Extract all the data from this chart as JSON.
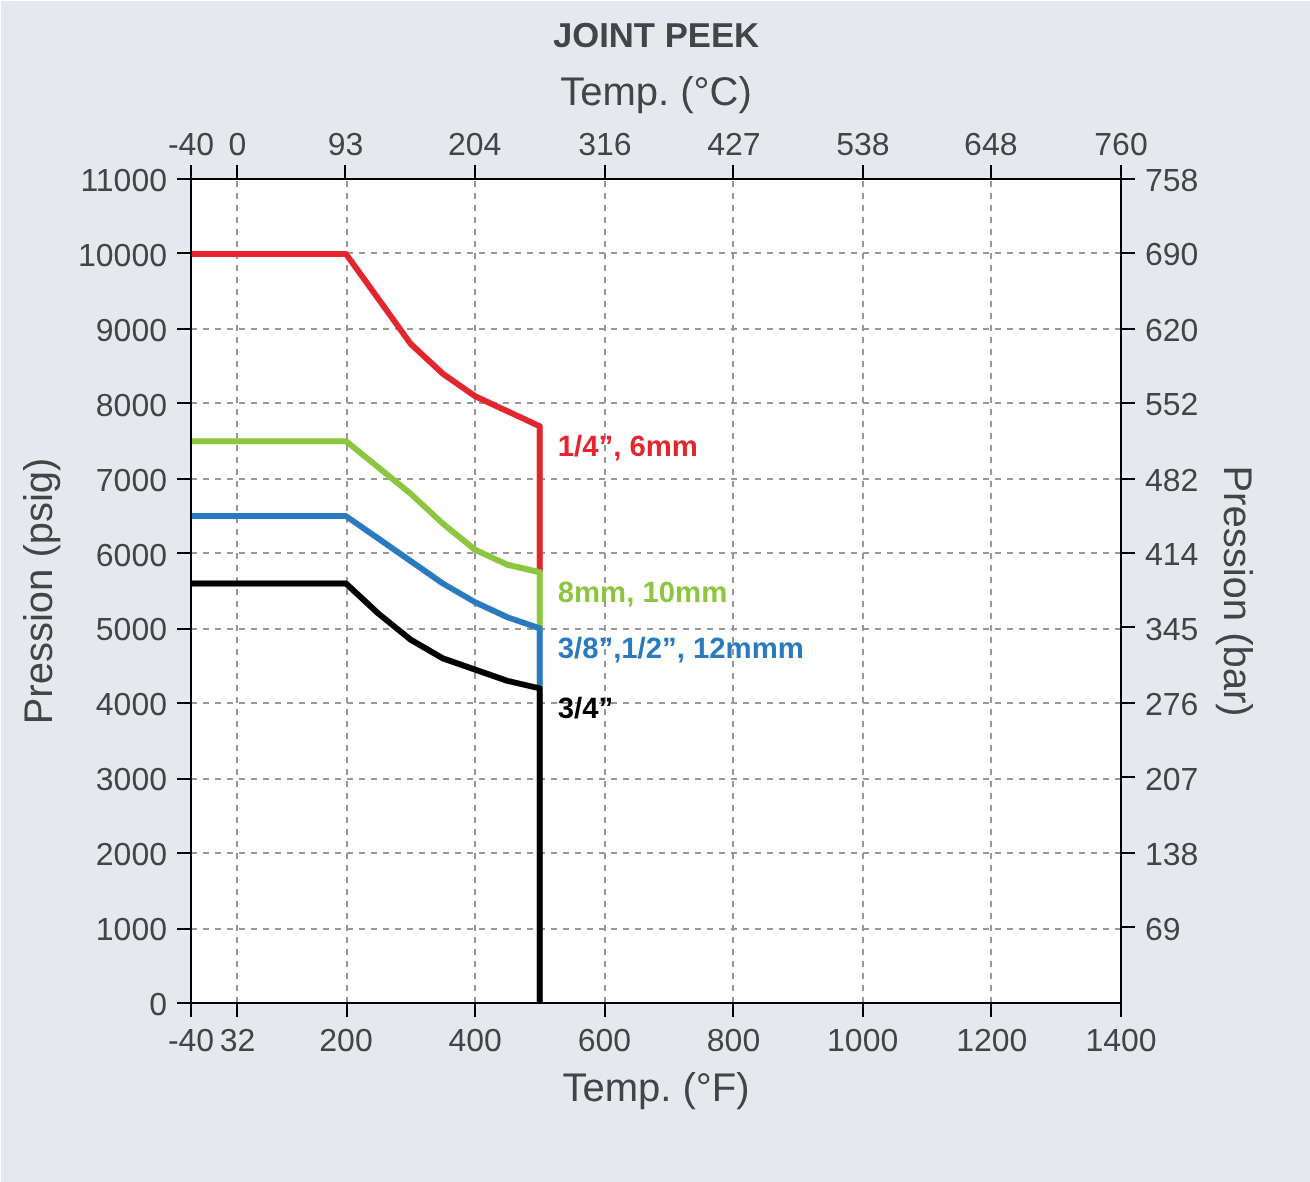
{
  "chart_data": {
    "type": "line",
    "title": "JOINT PEEK",
    "xlabel": "Temp. (°F)",
    "x2label": "Temp. (°C)",
    "ylabel": "Pression (psig)",
    "y2label": "Pression (bar)",
    "xlim": [
      -40,
      1400
    ],
    "xticks": [
      -40,
      32,
      200,
      400,
      600,
      800,
      1000,
      1200,
      1400
    ],
    "x2lim": [
      -40,
      760
    ],
    "x2ticks": [
      -40,
      0,
      93,
      204,
      316,
      427,
      538,
      648,
      760
    ],
    "ylim": [
      0,
      11000
    ],
    "yticks": [
      0,
      1000,
      2000,
      3000,
      4000,
      5000,
      6000,
      7000,
      8000,
      9000,
      10000,
      11000
    ],
    "y2lim": [
      0,
      758
    ],
    "y2ticks": [
      69,
      138,
      207,
      276,
      345,
      414,
      482,
      552,
      620,
      690,
      758
    ],
    "grid": true,
    "line_style": "solid",
    "marker": "none",
    "series": [
      {
        "name": "1/4”, 6mm",
        "color": "#e3262d",
        "x": [
          -40,
          200,
          250,
          300,
          350,
          400,
          450,
          500,
          500
        ],
        "values": [
          10000,
          10000,
          9400,
          8800,
          8400,
          8100,
          7900,
          7700,
          5750
        ]
      },
      {
        "name": "8mm, 10mm",
        "color": "#8cc63f",
        "x": [
          -40,
          200,
          250,
          300,
          350,
          400,
          450,
          500,
          500
        ],
        "values": [
          7500,
          7500,
          7150,
          6800,
          6400,
          6050,
          5850,
          5750,
          5000
        ]
      },
      {
        "name": "3/8”,1/2”, 12mmm",
        "color": "#2a7abf",
        "x": [
          -40,
          200,
          250,
          300,
          350,
          400,
          450,
          500,
          500
        ],
        "values": [
          6500,
          6500,
          6200,
          5900,
          5600,
          5350,
          5150,
          5000,
          4200
        ]
      },
      {
        "name": "3/4”",
        "color": "#000000",
        "x": [
          -40,
          200,
          250,
          300,
          350,
          400,
          450,
          500,
          500
        ],
        "values": [
          5600,
          5600,
          5200,
          4850,
          4600,
          4450,
          4300,
          4200,
          0
        ]
      }
    ]
  }
}
